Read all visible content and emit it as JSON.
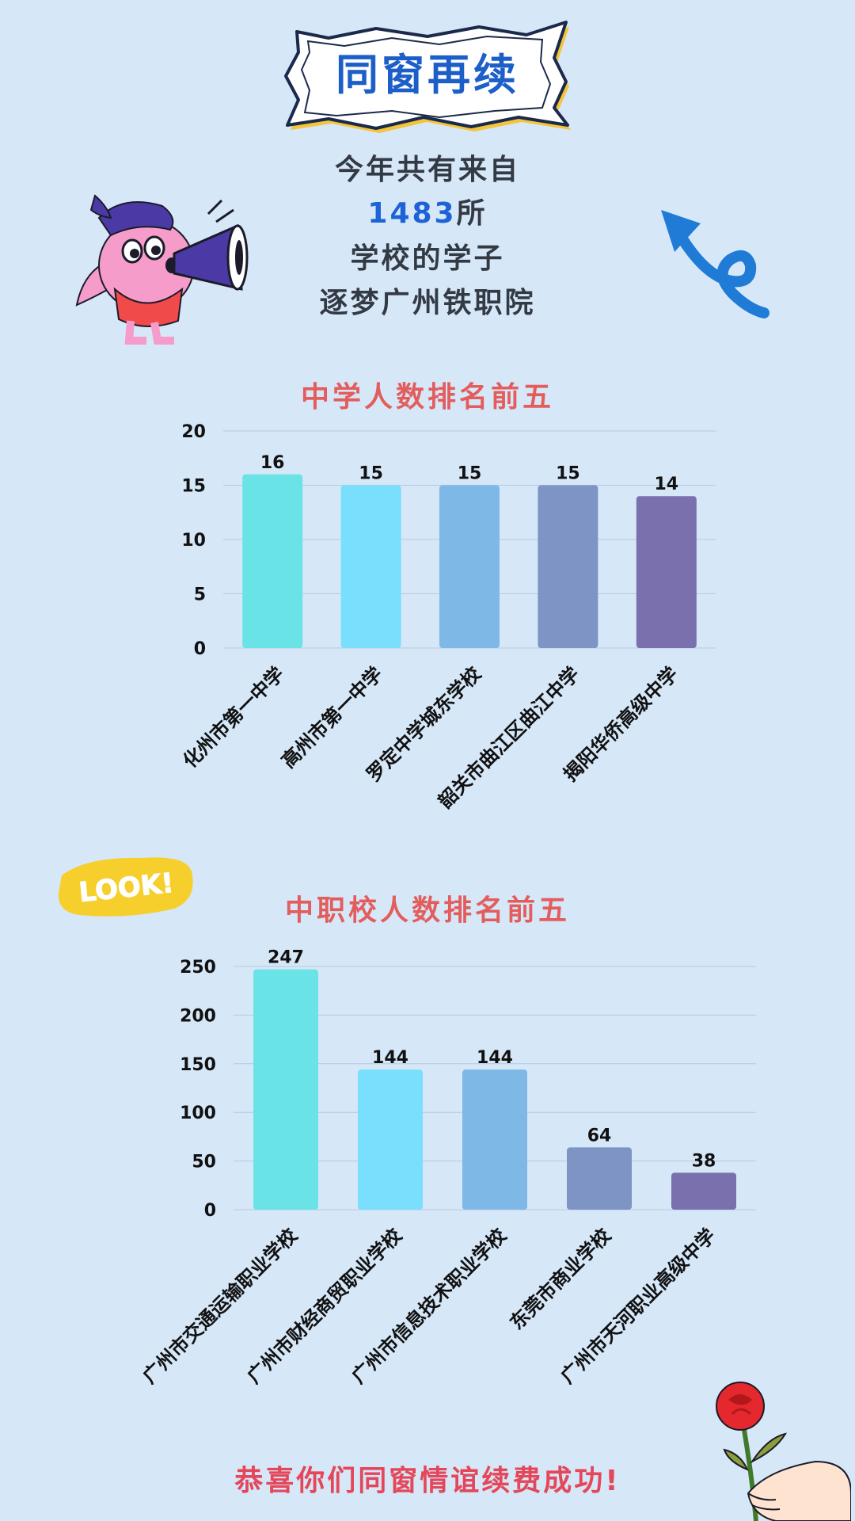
{
  "header": {
    "title": "同窗再续",
    "intro_line1": "今年共有来自",
    "school_count": "1483",
    "intro_line2_suffix": "所",
    "intro_line3": "学校的学子",
    "intro_line4": "逐梦广州铁职院"
  },
  "sticker": {
    "look": "LOOK!"
  },
  "closing": "恭喜你们同窗情谊续费成功!",
  "colors": {
    "background": "#d6e7f8",
    "title_blue": "#1d5fc9",
    "chart_title_red": "#e35d5d",
    "bars": [
      "#6ae3e6",
      "#79dffc",
      "#7eb8e6",
      "#7d94c5",
      "#7b70ae"
    ]
  },
  "chart_data": [
    {
      "type": "bar",
      "title": "中学人数排名前五",
      "categories": [
        "化州市第一中学",
        "高州市第一中学",
        "罗定中学城东学校",
        "韶关市曲江区曲江中学",
        "揭阳华侨高级中学"
      ],
      "values": [
        16,
        15,
        15,
        15,
        14
      ],
      "ylim": [
        0,
        20
      ],
      "yticks": [
        0,
        5,
        10,
        15,
        20
      ],
      "grid": true
    },
    {
      "type": "bar",
      "title": "中职校人数排名前五",
      "categories": [
        "广州市交通运输职业学校",
        "广州市财经商贸职业学校",
        "广州市信息技术职业学校",
        "东莞市商业学校",
        "广州市天河职业高级中学"
      ],
      "values": [
        247,
        144,
        144,
        64,
        38
      ],
      "ylim": [
        0,
        250
      ],
      "yticks": [
        0,
        50,
        100,
        150,
        200,
        250
      ],
      "grid": true
    }
  ]
}
